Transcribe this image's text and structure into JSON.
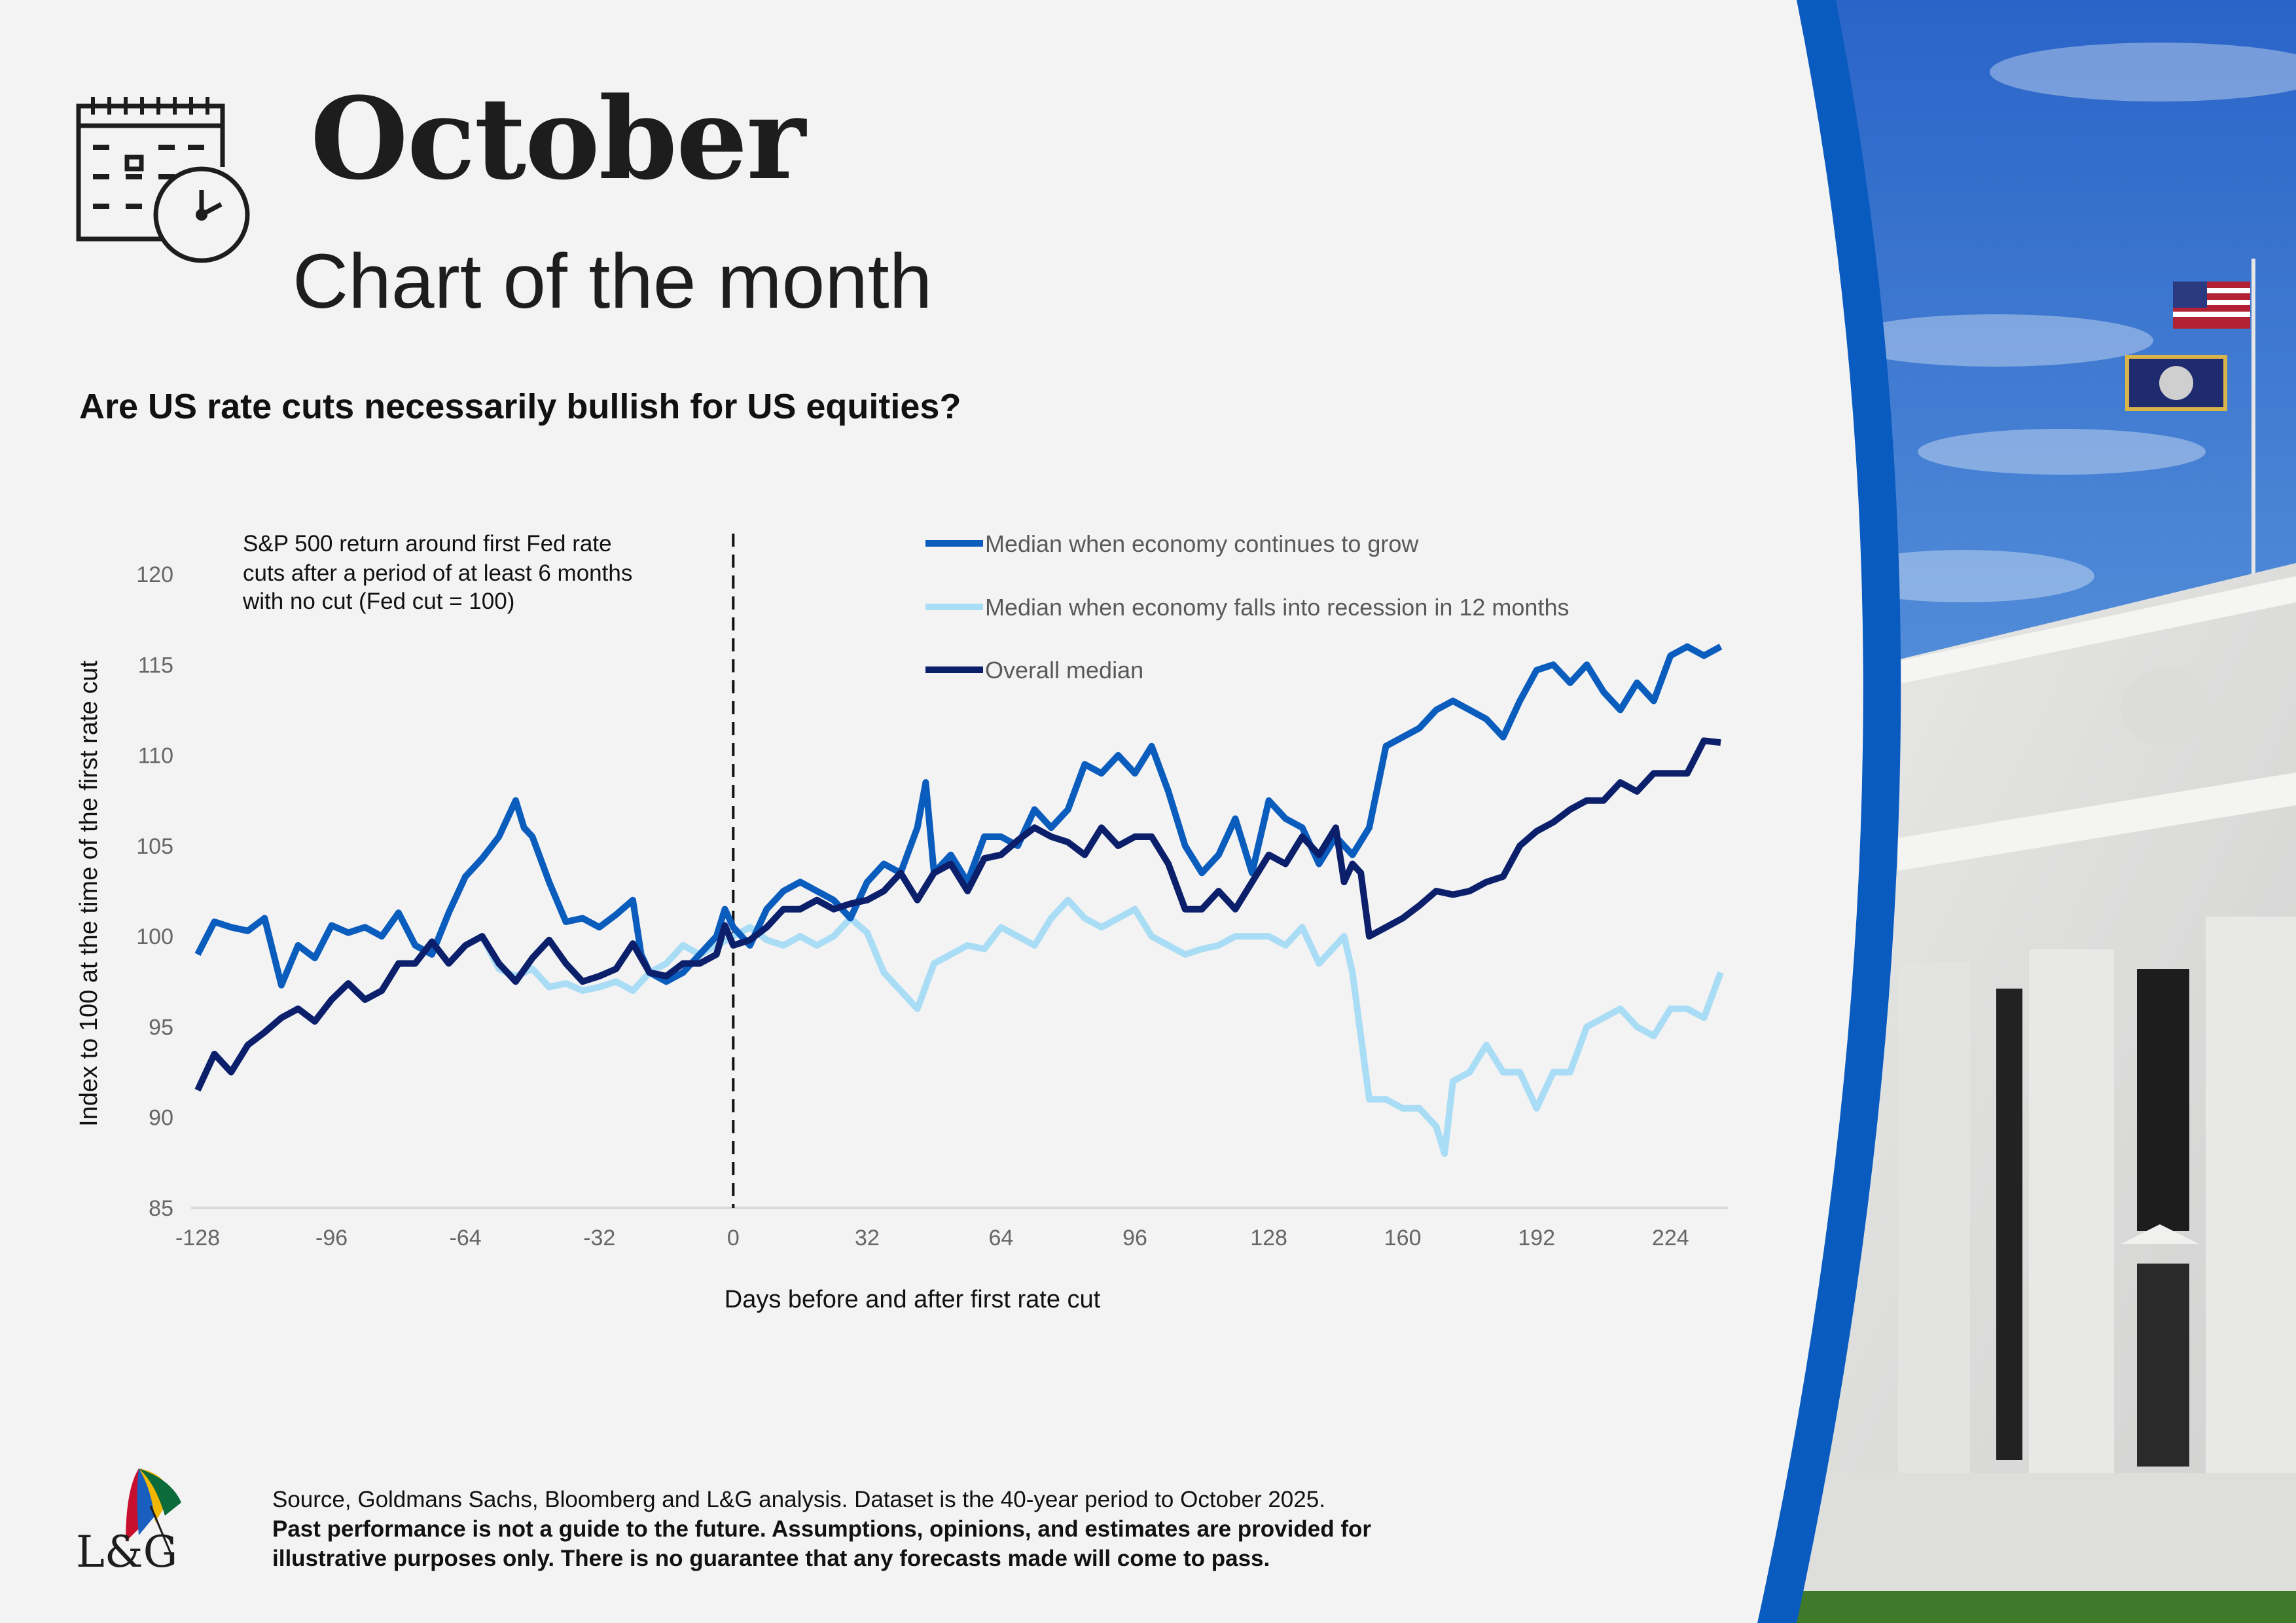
{
  "header": {
    "title": "October",
    "subtitle": "Chart of the month",
    "calendar_icon": "calendar-clock-icon"
  },
  "question": "Are US rate cuts necessarily bullish for US equities?",
  "footer": {
    "source": "Source, Goldmans Sachs, Bloomberg and L&G analysis. Dataset is the 40-year period to October 2025.",
    "disclaimer_1": "Past performance is not a guide to the future. Assumptions, opinions, and estimates are provided for",
    "disclaimer_2": "illustrative purposes only. There is no guarantee that any forecasts made will come to pass.",
    "logo_text": "L&G"
  },
  "colors": {
    "grow": "#0a5cbd",
    "recession": "#a9dcf5",
    "overall": "#0b1f6b",
    "band": "#0a5bbf"
  },
  "chart_data": {
    "type": "line",
    "annotation": [
      "S&P 500 return around first Fed rate",
      "cuts after a period of at least 6 months",
      "with no cut (Fed cut = 100)"
    ],
    "xlabel": "Days before and after first rate cut",
    "ylabel": "Index to 100 at the time of the first rate cut",
    "xlim": [
      -128,
      236
    ],
    "ylim": [
      85,
      120
    ],
    "xticks": [
      "-128",
      "-96",
      "-64",
      "-32",
      "0",
      "32",
      "64",
      "96",
      "128",
      "160",
      "192",
      "224"
    ],
    "yticks": [
      "85",
      "90",
      "95",
      "100",
      "105",
      "110",
      "115",
      "120"
    ],
    "vline_x": 0,
    "legend_position": "top-right",
    "series": [
      {
        "name": "Median when economy continues to grow",
        "color": "#0a5cbd",
        "x": [
          -128,
          -124,
          -120,
          -116,
          -112,
          -108,
          -104,
          -100,
          -96,
          -92,
          -88,
          -84,
          -80,
          -76,
          -72,
          -68,
          -64,
          -60,
          -56,
          -52,
          -50,
          -48,
          -44,
          -40,
          -36,
          -32,
          -28,
          -24,
          -22,
          -20,
          -16,
          -12,
          -8,
          -4,
          -2,
          0,
          4,
          8,
          12,
          16,
          20,
          24,
          28,
          32,
          36,
          40,
          44,
          46,
          48,
          52,
          56,
          60,
          64,
          68,
          72,
          76,
          80,
          84,
          88,
          92,
          96,
          100,
          104,
          108,
          112,
          116,
          120,
          124,
          128,
          132,
          136,
          140,
          144,
          148,
          152,
          156,
          160,
          164,
          168,
          172,
          176,
          180,
          184,
          188,
          192,
          196,
          200,
          204,
          208,
          212,
          216,
          220,
          224,
          228,
          232,
          236
        ],
        "y": [
          99,
          100.8,
          100.5,
          100.3,
          101,
          97.3,
          99.5,
          98.8,
          100.6,
          100.2,
          100.5,
          100,
          101.3,
          99.5,
          99,
          101.3,
          103.3,
          104.3,
          105.5,
          107.5,
          106,
          105.5,
          103,
          100.8,
          101,
          100.5,
          101.2,
          102,
          99,
          98,
          97.5,
          98,
          99,
          100,
          101.5,
          100.5,
          99.5,
          101.5,
          102.5,
          103,
          102.5,
          102,
          101,
          103,
          104,
          103.5,
          106,
          108.5,
          103.5,
          104.5,
          103,
          105.5,
          105.5,
          105,
          107,
          106,
          107,
          109.5,
          109,
          110,
          109,
          110.5,
          108,
          105,
          103.5,
          104.5,
          106.5,
          103.5,
          107.5,
          106.5,
          106,
          104,
          105.5,
          104.5,
          106,
          110.5,
          111,
          111.5,
          112.5,
          113,
          112.5,
          112,
          111,
          113,
          114.7,
          115,
          114,
          115,
          113.5,
          112.5,
          114,
          113,
          115.5,
          116,
          115.5,
          116
        ]
      },
      {
        "name": "Median when economy falls into recession in 12 months",
        "color": "#a9dcf5",
        "x": [
          -60,
          -56,
          -52,
          -48,
          -44,
          -40,
          -36,
          -32,
          -28,
          -24,
          -20,
          -16,
          -12,
          -8,
          -4,
          0,
          4,
          8,
          12,
          16,
          20,
          24,
          28,
          32,
          36,
          40,
          44,
          48,
          52,
          56,
          60,
          64,
          68,
          72,
          76,
          80,
          84,
          88,
          92,
          96,
          100,
          104,
          108,
          112,
          116,
          120,
          124,
          128,
          132,
          136,
          140,
          144,
          146,
          148,
          150,
          152,
          156,
          160,
          164,
          168,
          170,
          172,
          176,
          180,
          184,
          188,
          192,
          196,
          200,
          204,
          208,
          212,
          216,
          220,
          224,
          228,
          232,
          236
        ],
        "y": [
          100,
          98.2,
          97.8,
          98.2,
          97.2,
          97.4,
          97,
          97.2,
          97.5,
          97,
          98,
          98.5,
          99.5,
          99,
          99.5,
          100,
          100.5,
          99.8,
          99.5,
          100,
          99.5,
          100,
          101,
          100.2,
          98,
          97,
          96,
          98.5,
          99,
          99.5,
          99.3,
          100.5,
          100,
          99.5,
          101,
          102,
          101,
          100.5,
          101,
          101.5,
          100,
          99.5,
          99,
          99.3,
          99.5,
          100,
          100,
          100,
          99.5,
          100.5,
          98.5,
          99.5,
          100,
          98,
          94.5,
          91,
          91,
          90.5,
          90.5,
          89.5,
          88,
          92,
          92.5,
          94,
          92.5,
          92.5,
          90.5,
          92.5,
          92.5,
          95,
          95.5,
          96,
          95,
          94.5,
          96,
          96,
          95.5,
          98
        ]
      },
      {
        "name": "Overall median",
        "color": "#0b1f6b",
        "x": [
          -128,
          -124,
          -120,
          -116,
          -112,
          -108,
          -104,
          -100,
          -96,
          -92,
          -88,
          -84,
          -80,
          -76,
          -72,
          -68,
          -64,
          -60,
          -56,
          -52,
          -48,
          -44,
          -40,
          -36,
          -32,
          -28,
          -24,
          -20,
          -16,
          -12,
          -8,
          -4,
          -2,
          0,
          4,
          8,
          12,
          16,
          20,
          24,
          28,
          32,
          36,
          40,
          44,
          48,
          52,
          56,
          60,
          64,
          68,
          72,
          76,
          80,
          84,
          88,
          92,
          96,
          100,
          104,
          108,
          112,
          116,
          120,
          124,
          128,
          132,
          136,
          140,
          144,
          146,
          148,
          150,
          152,
          156,
          160,
          164,
          168,
          172,
          176,
          180,
          184,
          188,
          192,
          196,
          200,
          204,
          208,
          212,
          216,
          220,
          224,
          228,
          232,
          236
        ],
        "y": [
          91.5,
          93.5,
          92.5,
          94,
          94.7,
          95.5,
          96,
          95.3,
          96.5,
          97.4,
          96.5,
          97,
          98.5,
          98.5,
          99.7,
          98.5,
          99.5,
          100,
          98.5,
          97.5,
          98.8,
          99.8,
          98.5,
          97.5,
          97.8,
          98.2,
          99.6,
          98,
          97.8,
          98.5,
          98.5,
          99,
          100.6,
          99.5,
          99.8,
          100.5,
          101.5,
          101.5,
          102,
          101.5,
          101.8,
          102,
          102.5,
          103.5,
          102,
          103.5,
          104,
          102.5,
          104.3,
          104.5,
          105.3,
          106,
          105.5,
          105.2,
          104.5,
          106,
          105,
          105.5,
          105.5,
          104,
          101.5,
          101.5,
          102.5,
          101.5,
          103,
          104.5,
          104,
          105.5,
          104.5,
          106,
          103,
          104,
          103.5,
          100,
          100.5,
          101,
          101.7,
          102.5,
          102.3,
          102.5,
          103,
          103.3,
          105,
          105.8,
          106.3,
          107,
          107.5,
          107.5,
          108.5,
          108,
          109,
          109,
          109,
          110.8,
          110.7
        ]
      }
    ]
  }
}
